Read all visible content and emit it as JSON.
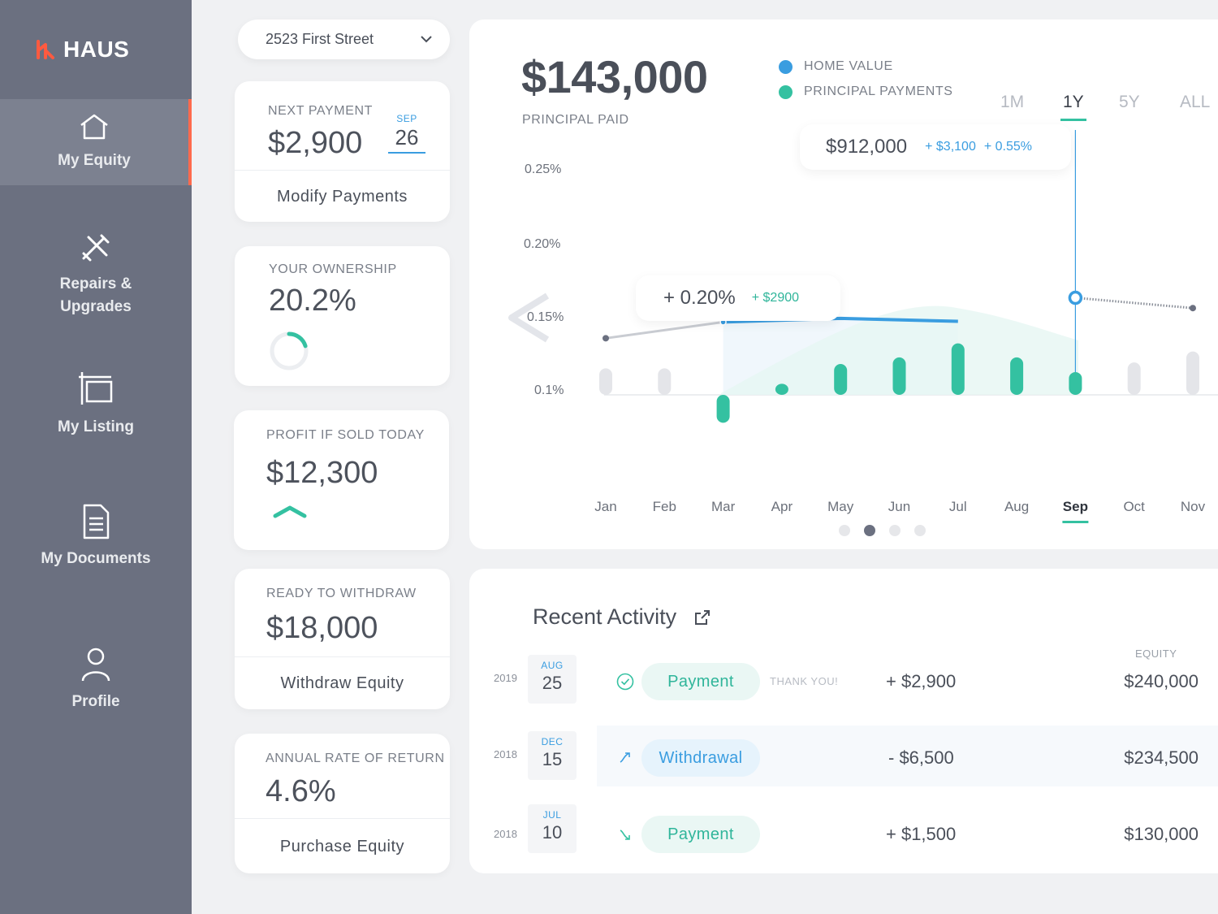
{
  "brand": {
    "name": "HAUS"
  },
  "sidebar": {
    "items": [
      {
        "label": "My Equity",
        "icon": "home-icon",
        "active": true
      },
      {
        "label": "Repairs &\nUpgrades",
        "icon": "tools-icon"
      },
      {
        "label": "My Listing",
        "icon": "listing-icon"
      },
      {
        "label": "My Documents",
        "icon": "document-icon"
      },
      {
        "label": "Profile",
        "icon": "user-icon"
      }
    ]
  },
  "address": {
    "selected": "2523 First Street"
  },
  "cards": {
    "next_payment": {
      "label": "NEXT PAYMENT",
      "amount": "$2,900",
      "month": "SEP",
      "day": "26",
      "action": "Modify Payments"
    },
    "ownership": {
      "label": "YOUR OWNERSHIP",
      "value": "20.2%",
      "fraction": 0.202
    },
    "profit": {
      "label": "PROFIT IF SOLD TODAY",
      "value": "$12,300"
    },
    "withdraw": {
      "label": "READY TO WITHDRAW",
      "value": "$18,000",
      "action": "Withdraw Equity"
    },
    "annual": {
      "label": "ANNUAL RATE OF RETURN",
      "value": "4.6%",
      "action": "Purchase Equity"
    }
  },
  "chart_header": {
    "headline": "$143,000",
    "sub": "PRINCIPAL PAID",
    "legend": [
      {
        "label": "HOME VALUE",
        "color": "#3a9de0"
      },
      {
        "label": "PRINCIPAL PAYMENTS",
        "color": "#34c1a1"
      }
    ],
    "ranges": [
      "1M",
      "1Y",
      "5Y",
      "ALL"
    ],
    "active_range": "1Y",
    "tooltip_top": {
      "value": "$912,000",
      "delta_amount": "+ $3,100",
      "delta_pct": "+ 0.55%"
    },
    "tooltip_mid": {
      "pct": "+ 0.20%",
      "amount": "+ $2900"
    },
    "carousel": {
      "count": 4,
      "active": 1
    }
  },
  "chart_data": {
    "type": "bar+line",
    "categories": [
      "Jan",
      "Feb",
      "Mar",
      "Apr",
      "May",
      "Jun",
      "Jul",
      "Aug",
      "Sep",
      "Oct",
      "Nov"
    ],
    "active_category": "Sep",
    "y_ticks": [
      "0.25%",
      "0.20%",
      "0.15%",
      "0.1%"
    ],
    "series": [
      {
        "name": "HOME VALUE",
        "values": [
          0.177,
          null,
          0.199,
          null,
          0.204,
          null,
          0.2,
          null,
          0.232,
          null,
          0.218
        ]
      },
      {
        "name": "PRINCIPAL PAYMENTS",
        "values": [
          0.136,
          0.136,
          0.062,
          0.115,
          0.142,
          0.151,
          0.17,
          0.151,
          0.131,
          0.144,
          0.159
        ]
      }
    ]
  },
  "activity": {
    "title": "Recent Activity",
    "equity_header": "EQUITY",
    "rows": [
      {
        "year": "2019",
        "month": "AUG",
        "day": "25",
        "type": "Payment",
        "kind": "pay",
        "icon": "check-circle-icon",
        "note": "THANK YOU!",
        "amount": "+ $2,900",
        "equity": "$240,000"
      },
      {
        "year": "2018",
        "month": "DEC",
        "day": "15",
        "type": "Withdrawal",
        "kind": "wd",
        "icon": "arrow-up-right-icon",
        "note": "",
        "amount": "- $6,500",
        "equity": "$234,500"
      },
      {
        "year": "2018",
        "month": "JUL",
        "day": "10",
        "type": "Payment",
        "kind": "pay",
        "icon": "arrow-down-right-icon",
        "note": "",
        "amount": "+ $1,500",
        "equity": "$130,000"
      }
    ]
  }
}
